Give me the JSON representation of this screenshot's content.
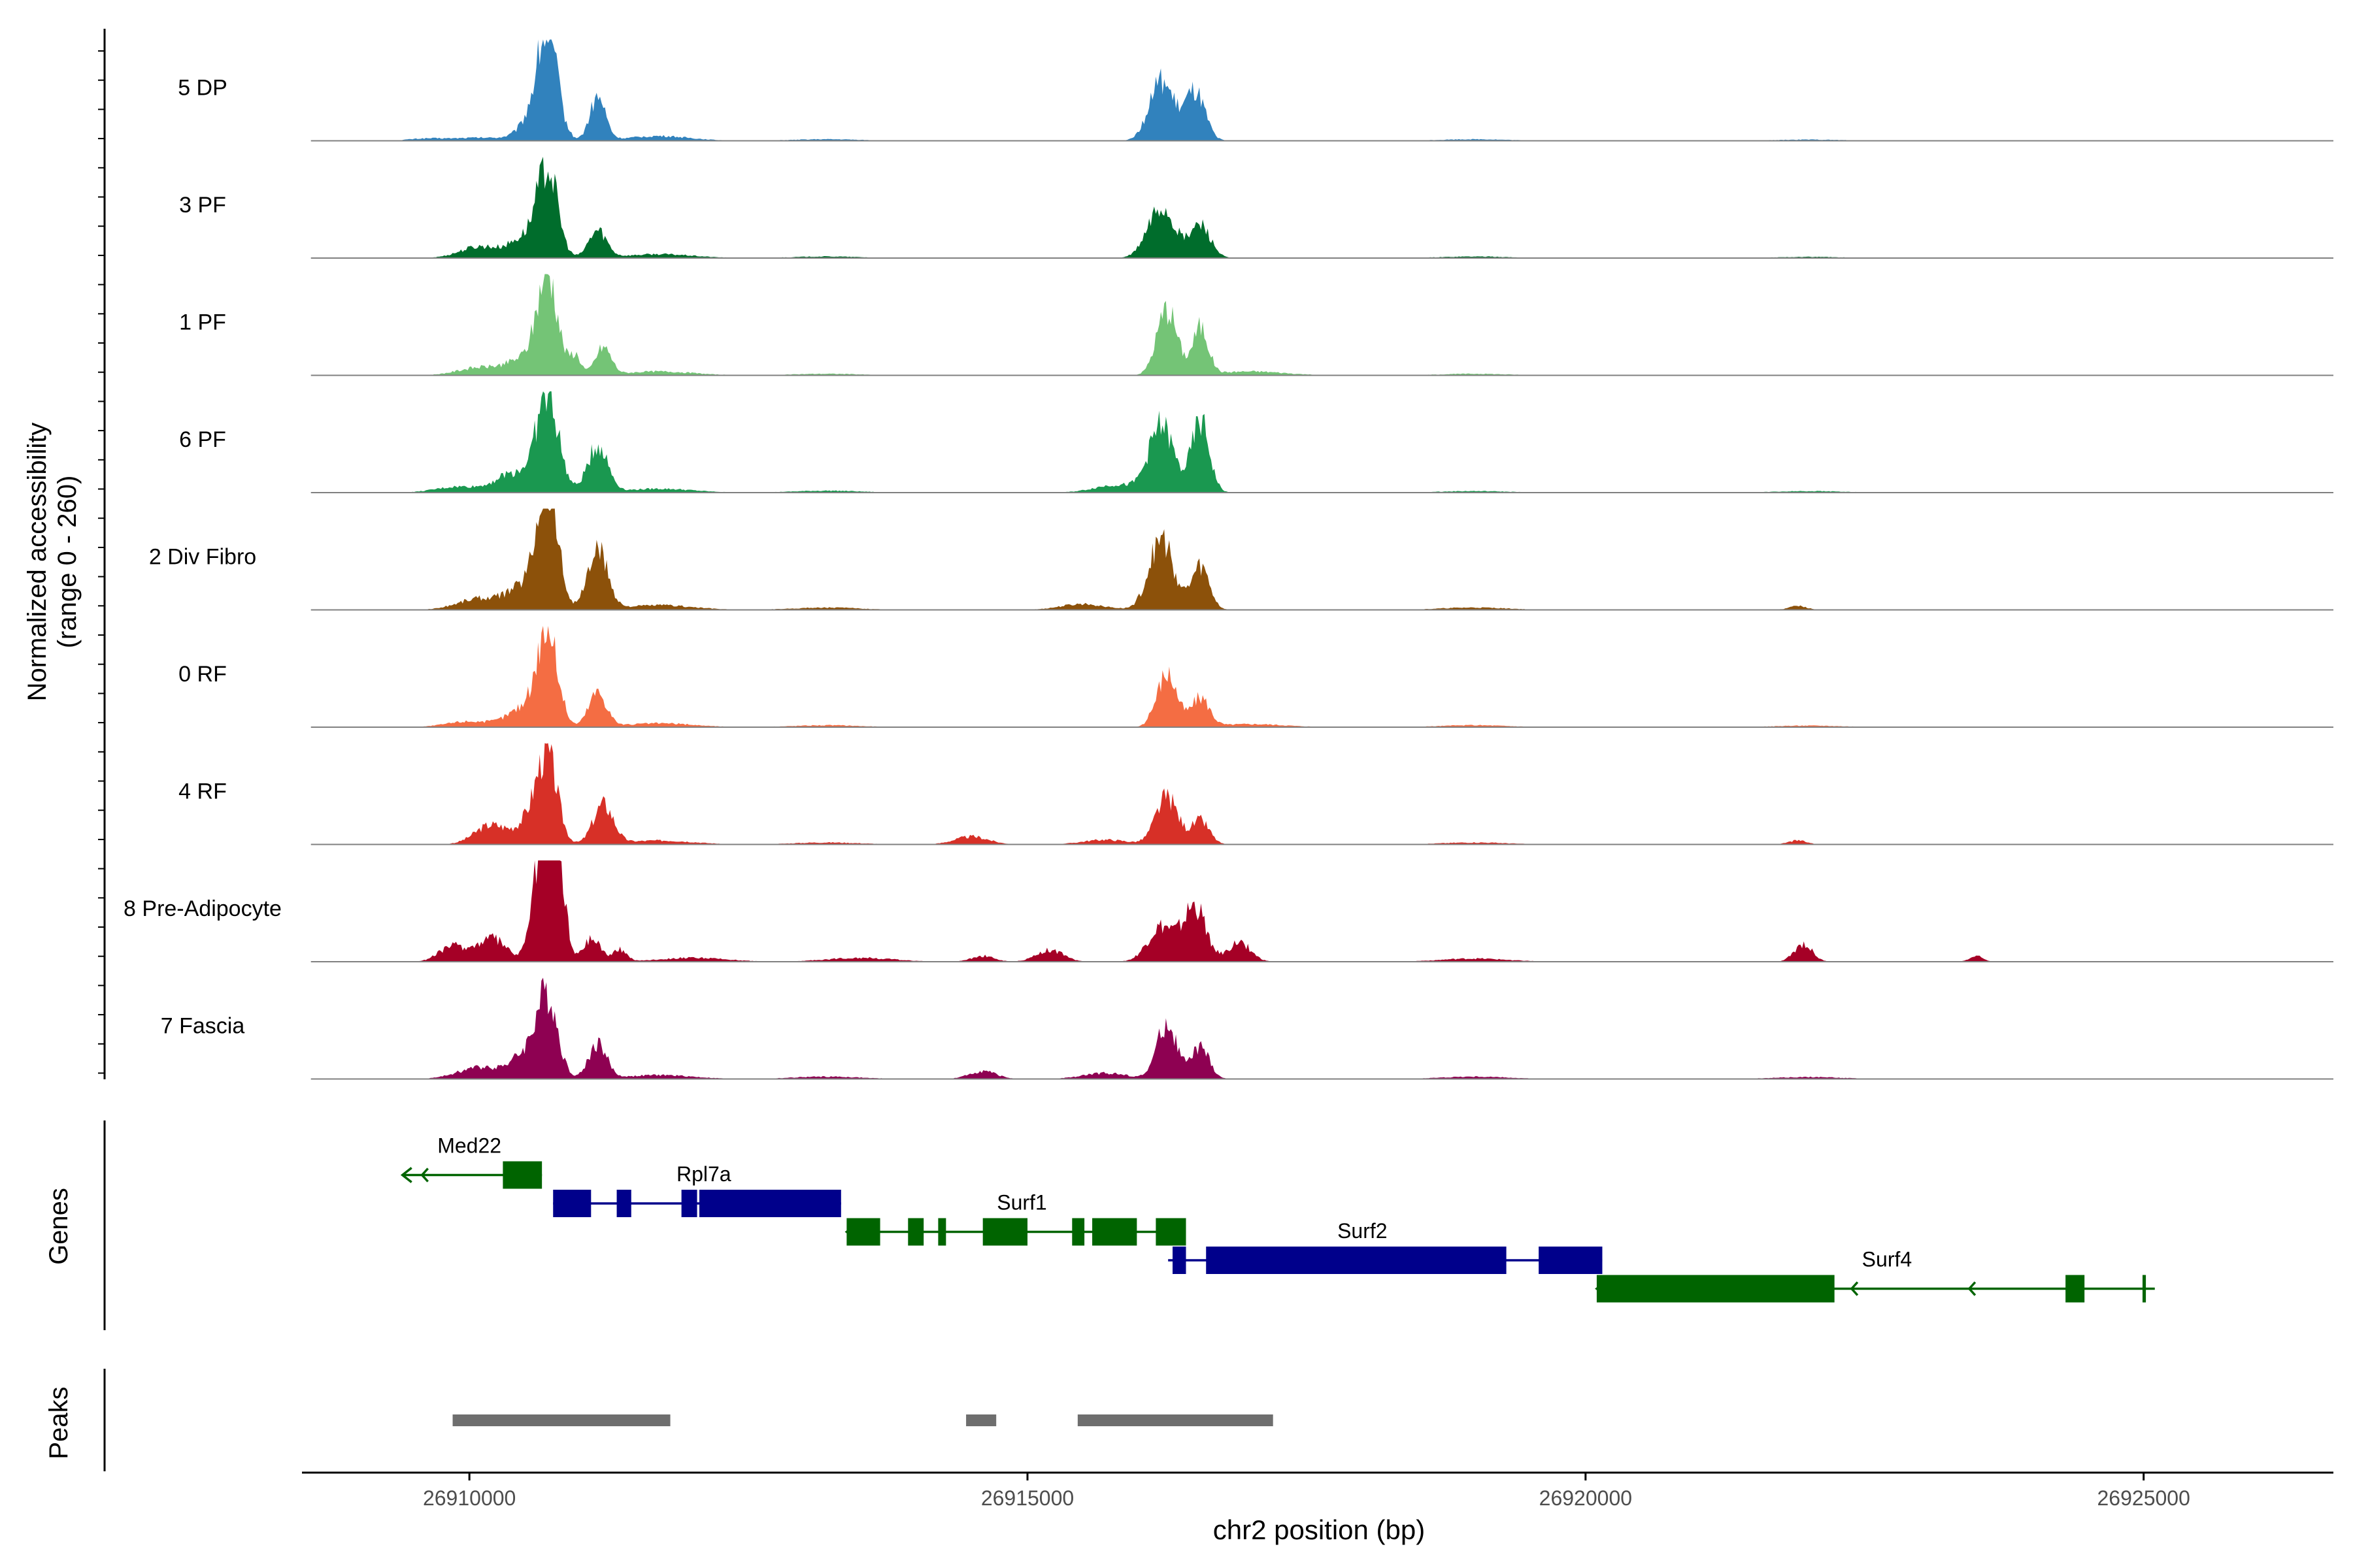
{
  "chart_data": {
    "type": "area",
    "title": "",
    "coverage": {
      "ylabel_line1": "Normalized accessibility",
      "ylabel_line2": "(range 0 - 260)",
      "ylim": [
        0,
        260
      ],
      "tracks": [
        {
          "name": "5 DP",
          "color": "#3182BD",
          "peaks": [
            [
              26909600,
              5,
              160
            ],
            [
              26910100,
              8,
              260
            ],
            [
              26910600,
              60,
              130
            ],
            [
              26910700,
              240,
              90
            ],
            [
              26911150,
              110,
              70
            ],
            [
              26916200,
              150,
              110
            ],
            [
              26916500,
              120,
              90
            ],
            [
              26911700,
              12,
              280
            ],
            [
              26913200,
              4,
              300
            ],
            [
              26919000,
              4,
              300
            ],
            [
              26922000,
              3,
              300
            ]
          ]
        },
        {
          "name": "3 PF",
          "color": "#006D2C",
          "peaks": [
            [
              26910100,
              30,
              180
            ],
            [
              26910500,
              50,
              130
            ],
            [
              26910700,
              225,
              90
            ],
            [
              26911150,
              70,
              80
            ],
            [
              26916200,
              130,
              120
            ],
            [
              26916550,
              85,
              90
            ],
            [
              26911700,
              10,
              300
            ],
            [
              26913200,
              4,
              300
            ],
            [
              26919000,
              4,
              300
            ],
            [
              26922000,
              3,
              300
            ]
          ]
        },
        {
          "name": "1 PF",
          "color": "#74C476",
          "peaks": [
            [
              26910100,
              20,
              200
            ],
            [
              26910500,
              40,
              150
            ],
            [
              26910700,
              250,
              90
            ],
            [
              26910950,
              50,
              50
            ],
            [
              26911200,
              70,
              70
            ],
            [
              26916250,
              170,
              90
            ],
            [
              26916550,
              120,
              70
            ],
            [
              26911700,
              10,
              300
            ],
            [
              26917000,
              10,
              300
            ],
            [
              26913200,
              4,
              300
            ],
            [
              26919000,
              4,
              300
            ]
          ]
        },
        {
          "name": "6 PF",
          "color": "#1A9850",
          "peaks": [
            [
              26909900,
              15,
              200
            ],
            [
              26910400,
              50,
              160
            ],
            [
              26910700,
              240,
              100
            ],
            [
              26911150,
              120,
              90
            ],
            [
              26915800,
              20,
              200
            ],
            [
              26916200,
              170,
              110
            ],
            [
              26916550,
              180,
              80
            ],
            [
              26911700,
              10,
              300
            ],
            [
              26913200,
              5,
              300
            ],
            [
              26919000,
              4,
              300
            ],
            [
              26922000,
              4,
              300
            ]
          ]
        },
        {
          "name": "2 Div Fibro",
          "color": "#8C510A",
          "peaks": [
            [
              26910100,
              30,
              200
            ],
            [
              26910500,
              60,
              140
            ],
            [
              26910700,
              320,
              90
            ],
            [
              26911150,
              150,
              90
            ],
            [
              26915500,
              15,
              200
            ],
            [
              26916200,
              180,
              110
            ],
            [
              26916550,
              110,
              80
            ],
            [
              26911700,
              12,
              300
            ],
            [
              26913200,
              6,
              300
            ],
            [
              26919000,
              6,
              300
            ],
            [
              26921900,
              10,
              80
            ]
          ]
        },
        {
          "name": "0 RF",
          "color": "#F46D43",
          "peaks": [
            [
              26910000,
              15,
              200
            ],
            [
              26910500,
              50,
              150
            ],
            [
              26910700,
              240,
              90
            ],
            [
              26911150,
              90,
              80
            ],
            [
              26916250,
              140,
              90
            ],
            [
              26916550,
              75,
              80
            ],
            [
              26911700,
              10,
              300
            ],
            [
              26917000,
              8,
              300
            ],
            [
              26913200,
              5,
              300
            ],
            [
              26919000,
              5,
              300
            ],
            [
              26922000,
              4,
              300
            ]
          ]
        },
        {
          "name": "4 RF",
          "color": "#D73027",
          "peaks": [
            [
              26910200,
              50,
              150
            ],
            [
              26910550,
              60,
              110
            ],
            [
              26910700,
              210,
              90
            ],
            [
              26911200,
              100,
              90
            ],
            [
              26914500,
              20,
              150
            ],
            [
              26915700,
              12,
              200
            ],
            [
              26916250,
              120,
              100
            ],
            [
              26916550,
              60,
              80
            ],
            [
              26911700,
              10,
              300
            ],
            [
              26913200,
              5,
              300
            ],
            [
              26919000,
              5,
              300
            ],
            [
              26921900,
              10,
              80
            ]
          ]
        },
        {
          "name": "8 Pre-Adipocyte",
          "color": "#A50026",
          "peaks": [
            [
              26909850,
              40,
              120
            ],
            [
              26910200,
              60,
              130
            ],
            [
              26910650,
              300,
              80
            ],
            [
              26910800,
              250,
              60
            ],
            [
              26911100,
              60,
              80
            ],
            [
              26911350,
              30,
              60
            ],
            [
              26914600,
              15,
              100
            ],
            [
              26915200,
              30,
              120
            ],
            [
              26916200,
              90,
              120
            ],
            [
              26916500,
              140,
              100
            ],
            [
              26916900,
              50,
              100
            ],
            [
              26921950,
              45,
              80
            ],
            [
              26923500,
              15,
              60
            ],
            [
              26912000,
              10,
              300
            ],
            [
              26913500,
              10,
              300
            ],
            [
              26919000,
              8,
              300
            ]
          ]
        },
        {
          "name": "7 Fascia",
          "color": "#8E0152",
          "peaks": [
            [
              26910100,
              30,
              200
            ],
            [
              26910550,
              70,
              150
            ],
            [
              26910700,
              180,
              90
            ],
            [
              26911150,
              90,
              80
            ],
            [
              26914600,
              20,
              120
            ],
            [
              26915700,
              15,
              200
            ],
            [
              26916250,
              140,
              90
            ],
            [
              26916550,
              80,
              80
            ],
            [
              26911700,
              10,
              300
            ],
            [
              26913200,
              6,
              300
            ],
            [
              26919000,
              6,
              300
            ],
            [
              26922000,
              5,
              300
            ]
          ]
        }
      ]
    },
    "genes": {
      "label": "Genes",
      "items": [
        {
          "name": "Med22",
          "strand": "-",
          "color": "#006400",
          "row": 3,
          "start": 26909400,
          "end": 26910650,
          "exons": [
            [
              26910300,
              26910650
            ]
          ],
          "label_pos": 26910000
        },
        {
          "name": "Rpl7a",
          "strand": "+",
          "color": "#00008B",
          "row": 2,
          "start": 26910750,
          "end": 26913330,
          "exons": [
            [
              26910750,
              26911090
            ],
            [
              26911320,
              26911450
            ],
            [
              26911900,
              26912040
            ],
            [
              26912060,
              26913330
            ]
          ],
          "label_pos": 26912100
        },
        {
          "name": "Surf1",
          "strand": "-",
          "color": "#006400",
          "row": 1,
          "start": 26913380,
          "end": 26916420,
          "exons": [
            [
              26913380,
              26913680
            ],
            [
              26913930,
              26914070
            ],
            [
              26914200,
              26914270
            ],
            [
              26914600,
              26915000
            ],
            [
              26915400,
              26915510
            ],
            [
              26915580,
              26915980
            ],
            [
              26916150,
              26916420
            ]
          ],
          "label_pos": 26914950
        },
        {
          "name": "Surf2",
          "strand": "+",
          "color": "#00008B",
          "row": 0,
          "start": 26916260,
          "end": 26920150,
          "exons": [
            [
              26916300,
              26916420
            ],
            [
              26916600,
              26919290
            ],
            [
              26919580,
              26920150
            ]
          ],
          "label_pos": 26918000
        },
        {
          "name": "Surf4",
          "strand": "-",
          "color": "#006400",
          "row": -1,
          "start": 26920100,
          "end": 26925100,
          "exons": [
            [
              26920100,
              26922230
            ],
            [
              26924300,
              26924470
            ],
            [
              26924990,
              26925020
            ]
          ],
          "label_pos": 26922700
        }
      ]
    },
    "peaks_track": {
      "label": "Peaks",
      "color": "#6E6E6E",
      "regions": [
        [
          26909850,
          26911800
        ],
        [
          26914450,
          26914720
        ],
        [
          26915450,
          26917200
        ]
      ]
    },
    "xaxis": {
      "xlabel": "chr2 position (bp)",
      "xlim": [
        26908500,
        26926700
      ],
      "ticks": [
        26910000,
        26915000,
        26920000,
        26925000
      ],
      "tick_labels": [
        "26910000",
        "26915000",
        "26920000",
        "26925000"
      ]
    }
  }
}
